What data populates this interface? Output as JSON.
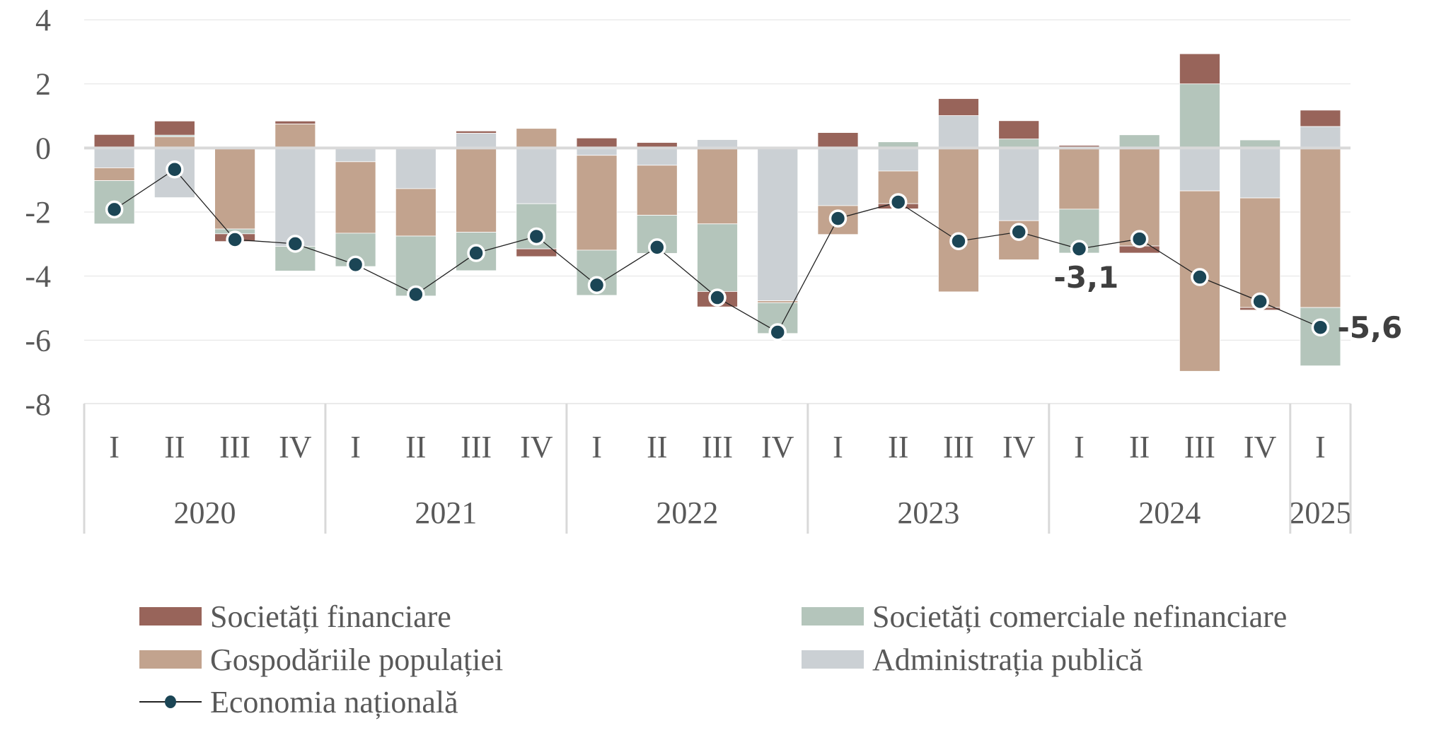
{
  "chart_data": {
    "type": "bar",
    "stacked": true,
    "title": "",
    "xlabel": "",
    "ylabel": "",
    "ylim": [
      -8,
      4
    ],
    "yticks": [
      "4",
      "2",
      "0",
      "-2",
      "-4",
      "-6",
      "-8"
    ],
    "ytick_values": [
      4,
      2,
      0,
      -2,
      -4,
      -6,
      -8
    ],
    "grid": true,
    "legend_position": "bottom",
    "years": [
      {
        "label": "2020",
        "quarters": 4
      },
      {
        "label": "2021",
        "quarters": 4
      },
      {
        "label": "2022",
        "quarters": 4
      },
      {
        "label": "2023",
        "quarters": 4
      },
      {
        "label": "2024",
        "quarters": 4
      },
      {
        "label": "2025",
        "quarters": 1
      }
    ],
    "categories": [
      "I",
      "II",
      "III",
      "IV",
      "I",
      "II",
      "III",
      "IV",
      "I",
      "II",
      "III",
      "IV",
      "I",
      "II",
      "III",
      "IV",
      "I",
      "II",
      "III",
      "IV",
      "I"
    ],
    "series": [
      {
        "key": "adm",
        "name": "Administrația publică",
        "color": "#cbd0d4",
        "values": [
          -0.62,
          -1.55,
          0.0,
          -3.07,
          -0.43,
          -1.27,
          0.46,
          -1.74,
          -0.23,
          -0.54,
          0.26,
          -4.77,
          -1.8,
          -0.72,
          1.01,
          -2.27,
          0.0,
          0.0,
          -1.34,
          -1.56,
          0.67
        ]
      },
      {
        "key": "hh",
        "name": "Gospodăriile populației",
        "color": "#c2a38e",
        "values": [
          -0.4,
          0.35,
          -2.53,
          0.75,
          -2.23,
          -1.48,
          -2.63,
          0.61,
          -2.96,
          -1.56,
          -2.37,
          -0.06,
          -0.9,
          -1.02,
          -4.49,
          -1.22,
          -1.91,
          -3.06,
          -5.63,
          -3.42,
          -4.98
        ]
      },
      {
        "key": "nfc",
        "name": "Societăți comerciale nefinanciare",
        "color": "#b4c5bb",
        "values": [
          -1.35,
          0.05,
          -0.15,
          -0.77,
          -1.04,
          -1.87,
          -1.2,
          -1.41,
          -1.41,
          -1.19,
          -2.11,
          -0.96,
          0.0,
          0.19,
          0.0,
          0.28,
          -1.37,
          0.41,
          2.0,
          0.25,
          -1.82
        ]
      },
      {
        "key": "fin",
        "name": "Societăți financiare",
        "color": "#98645a",
        "values": [
          0.42,
          0.44,
          -0.24,
          0.09,
          0.04,
          0.0,
          0.07,
          -0.24,
          0.31,
          0.17,
          -0.48,
          0.0,
          0.48,
          -0.16,
          0.53,
          0.57,
          0.08,
          -0.22,
          0.94,
          -0.08,
          0.51
        ]
      }
    ],
    "line": {
      "name": "Economia națională",
      "color": "#1b4555",
      "values": [
        -1.92,
        -0.67,
        -2.86,
        -2.99,
        -3.64,
        -4.57,
        -3.28,
        -2.76,
        -4.28,
        -3.1,
        -4.67,
        -5.75,
        -2.2,
        -1.69,
        -2.91,
        -2.62,
        -3.15,
        -2.84,
        -4.03,
        -4.79,
        -5.6
      ]
    },
    "annotations": [
      {
        "index": 16,
        "text": "-3,1"
      },
      {
        "index": 20,
        "text": "-5,6"
      }
    ]
  },
  "legend": {
    "items": [
      {
        "key": "fin",
        "label": "Societăți financiare",
        "color": "#98645a"
      },
      {
        "key": "nfc",
        "label": "Societăți comerciale nefinanciare",
        "color": "#b4c5bb"
      },
      {
        "key": "hh",
        "label": "Gospodăriile populației",
        "color": "#c2a38e"
      },
      {
        "key": "adm",
        "label": "Administrația publică",
        "color": "#cbd0d4"
      },
      {
        "key": "line",
        "label": "Economia națională",
        "color": "#1b4555"
      }
    ]
  }
}
